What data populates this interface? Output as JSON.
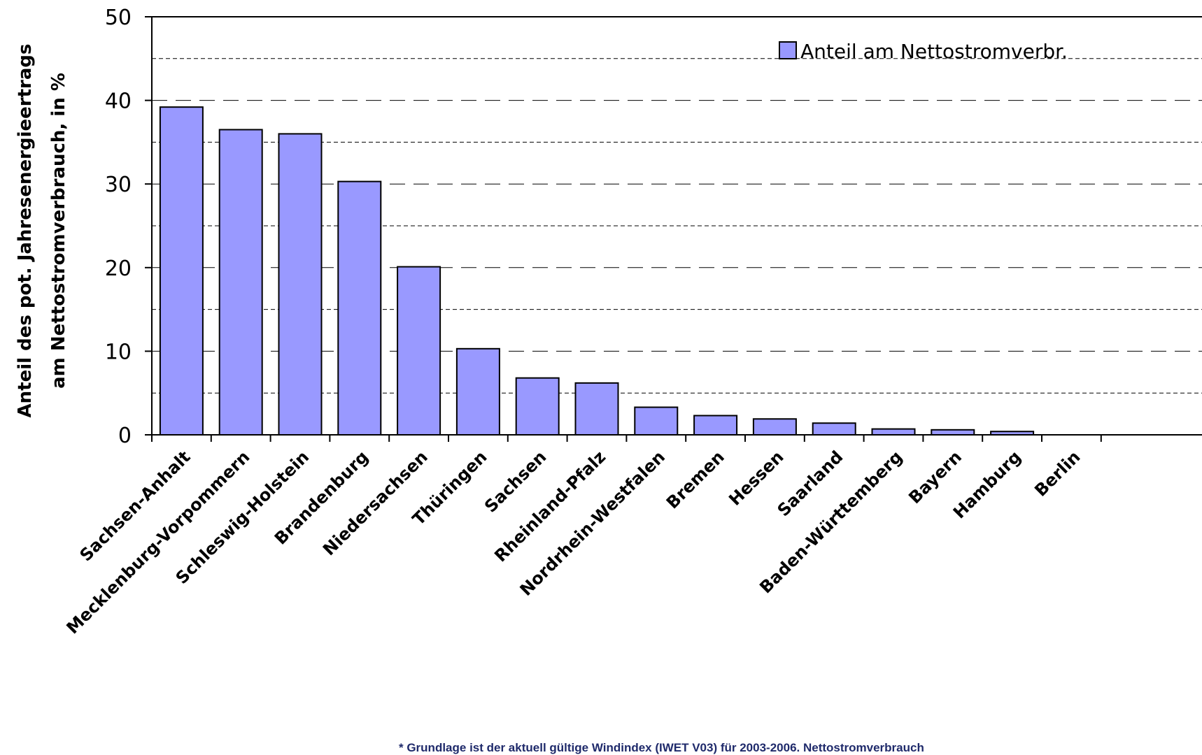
{
  "chart_data": {
    "type": "bar",
    "title": "",
    "ylabel": [
      "Anteil des pot. Jahresenergieertrags",
      "am Nettostromverbrauch, in %"
    ],
    "xlabel": "",
    "ylim": [
      0,
      50
    ],
    "yticks": [
      0,
      10,
      20,
      30,
      40,
      50
    ],
    "grid": true,
    "legend_position": "top-right",
    "categories": [
      "Sachsen-Anhalt",
      "Mecklenburg-Vorpommern",
      "Schleswig-Holstein",
      "Brandenburg",
      "Niedersachsen",
      "Thüringen",
      "Sachsen",
      "Rheinland-Pfalz",
      "Nordrhein-Westfalen",
      "Bremen",
      "Hessen",
      "Saarland",
      "Baden-Württemberg",
      "Bayern",
      "Hamburg",
      "Berlin"
    ],
    "series": [
      {
        "name": "Anteil am Nettostromverbr.",
        "color": "#9999ff",
        "values": [
          39.2,
          36.5,
          36.0,
          30.3,
          20.1,
          10.3,
          6.8,
          6.2,
          3.3,
          2.3,
          1.9,
          1.4,
          0.7,
          0.6,
          0.4,
          0.0
        ]
      }
    ]
  },
  "footnote": "*     Grundlage ist der aktuell gültige Windindex (IWET V03) für 2003-2006. Nettostromverbrauch"
}
